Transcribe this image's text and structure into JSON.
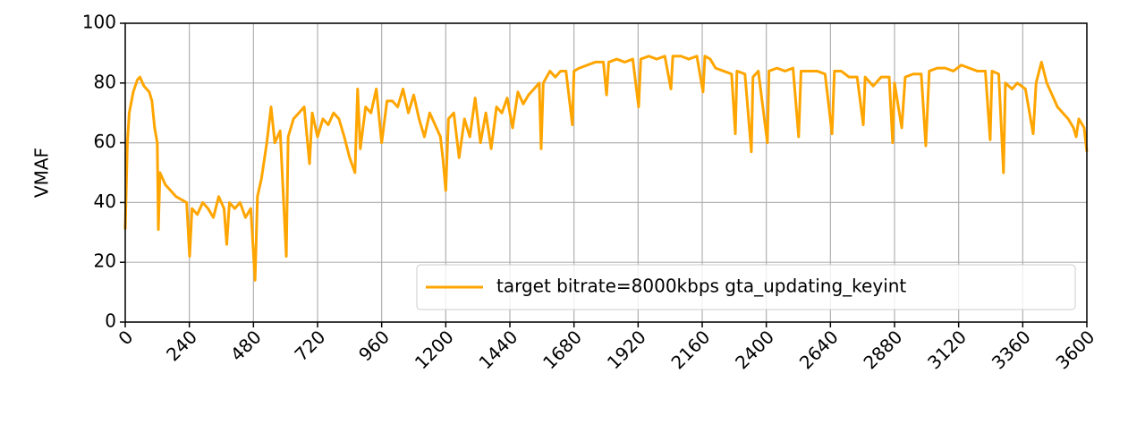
{
  "chart_data": {
    "type": "line",
    "y_label": "VMAF",
    "xlim": [
      0,
      3600
    ],
    "ylim": [
      0,
      100
    ],
    "xticks": [
      0,
      240,
      480,
      720,
      960,
      1200,
      1440,
      1680,
      1920,
      2160,
      2400,
      2640,
      2880,
      3120,
      3360,
      3600
    ],
    "yticks": [
      0,
      20,
      40,
      60,
      80,
      100
    ],
    "grid": true,
    "legend_position": "lower right",
    "x": [
      0,
      8,
      15,
      30,
      45,
      55,
      70,
      90,
      100,
      110,
      120,
      124,
      130,
      150,
      170,
      190,
      210,
      230,
      241,
      250,
      270,
      290,
      310,
      330,
      350,
      370,
      380,
      390,
      410,
      430,
      450,
      470,
      486,
      495,
      510,
      530,
      546,
      560,
      580,
      603,
      610,
      630,
      650,
      670,
      690,
      700,
      720,
      740,
      760,
      780,
      800,
      820,
      840,
      860,
      870,
      880,
      900,
      920,
      940,
      960,
      980,
      1000,
      1020,
      1040,
      1060,
      1080,
      1100,
      1120,
      1140,
      1160,
      1180,
      1190,
      1200,
      1210,
      1230,
      1250,
      1270,
      1290,
      1310,
      1330,
      1350,
      1370,
      1390,
      1410,
      1430,
      1450,
      1470,
      1490,
      1510,
      1530,
      1550,
      1557,
      1565,
      1590,
      1610,
      1630,
      1650,
      1674,
      1680,
      1700,
      1730,
      1760,
      1790,
      1802,
      1810,
      1840,
      1870,
      1900,
      1922,
      1930,
      1960,
      1990,
      2020,
      2043,
      2050,
      2080,
      2110,
      2140,
      2163,
      2170,
      2190,
      2210,
      2240,
      2270,
      2284,
      2290,
      2320,
      2344,
      2350,
      2370,
      2404,
      2410,
      2440,
      2470,
      2500,
      2521,
      2530,
      2560,
      2590,
      2620,
      2646,
      2655,
      2680,
      2710,
      2740,
      2763,
      2770,
      2800,
      2830,
      2860,
      2873,
      2880,
      2907,
      2920,
      2950,
      2980,
      2997,
      3010,
      3040,
      3070,
      3100,
      3130,
      3160,
      3190,
      3220,
      3238,
      3245,
      3270,
      3288,
      3295,
      3320,
      3340,
      3370,
      3399,
      3410,
      3430,
      3450,
      3470,
      3490,
      3510,
      3530,
      3550,
      3560,
      3570,
      3590,
      3600
    ],
    "series": [
      {
        "name": "target bitrate=8000kbps gta_updating_keyint",
        "color": "#ffa500",
        "values": [
          31,
          60,
          70,
          77,
          81,
          82,
          79,
          77,
          74,
          65,
          60,
          31,
          50,
          46,
          44,
          42,
          41,
          40,
          22,
          38,
          36,
          40,
          38,
          35,
          42,
          38,
          26,
          40,
          38,
          40,
          35,
          38,
          14,
          42,
          48,
          60,
          72,
          60,
          64,
          22,
          62,
          68,
          70,
          72,
          53,
          70,
          62,
          68,
          66,
          70,
          68,
          62,
          55,
          50,
          78,
          58,
          72,
          70,
          78,
          60,
          74,
          74,
          72,
          78,
          70,
          76,
          68,
          62,
          70,
          66,
          62,
          54,
          44,
          68,
          70,
          55,
          68,
          62,
          75,
          60,
          70,
          58,
          72,
          70,
          75,
          65,
          77,
          73,
          76,
          78,
          80,
          58,
          80,
          84,
          82,
          84,
          84,
          66,
          84,
          85,
          86,
          87,
          87,
          76,
          87,
          88,
          87,
          88,
          72,
          88,
          89,
          88,
          89,
          78,
          89,
          89,
          88,
          89,
          77,
          89,
          88,
          85,
          84,
          83,
          63,
          84,
          83,
          57,
          82,
          84,
          60,
          84,
          85,
          84,
          85,
          62,
          84,
          84,
          84,
          83,
          63,
          84,
          84,
          82,
          82,
          66,
          82,
          79,
          82,
          82,
          60,
          80,
          65,
          82,
          83,
          83,
          59,
          84,
          85,
          85,
          84,
          86,
          85,
          84,
          84,
          61,
          84,
          83,
          50,
          80,
          78,
          80,
          78,
          63,
          80,
          87,
          80,
          76,
          72,
          70,
          68,
          65,
          62,
          68,
          65,
          57
        ]
      }
    ]
  }
}
